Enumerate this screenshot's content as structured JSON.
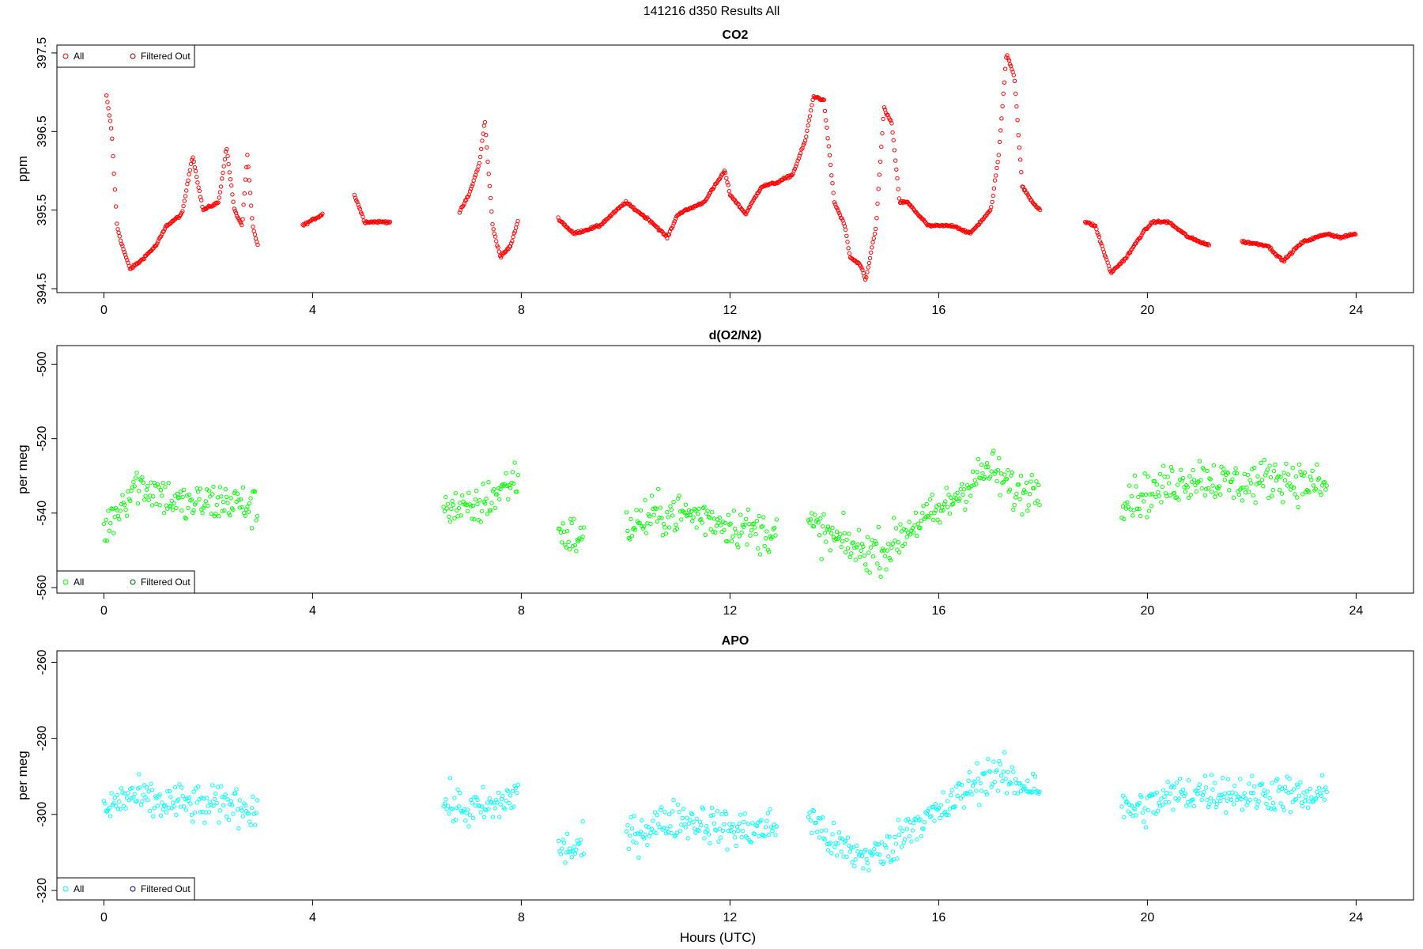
{
  "figure": {
    "title": "141216   d350   Results All",
    "xlabel": "Hours (UTC)"
  },
  "chart_data": [
    {
      "type": "scatter",
      "title": "CO2",
      "ylabel": "ppm",
      "xlim": [
        -0.9,
        25.1
      ],
      "ylim": [
        394.45,
        397.6
      ],
      "x_ticks": [
        0,
        4,
        8,
        12,
        16,
        20,
        24
      ],
      "y_ticks": [
        394.5,
        395.5,
        396.5,
        397.5
      ],
      "y_tick_labels": [
        "394.5",
        "395.5",
        "396.5",
        "397.5"
      ],
      "legend": {
        "position": "top-left",
        "entries": [
          {
            "label": "All",
            "color": "#ff0000"
          },
          {
            "label": "Filtered Out",
            "color": "#8b0000"
          }
        ]
      },
      "series": [
        {
          "name": "All",
          "color": "#ff0000",
          "style": "smooth",
          "knots": [
            [
              0.05,
              396.95
            ],
            [
              0.15,
              396.5
            ],
            [
              0.25,
              395.3
            ],
            [
              0.35,
              395.05
            ],
            [
              0.5,
              394.75
            ],
            [
              0.7,
              394.85
            ],
            [
              1.0,
              395.05
            ],
            [
              1.2,
              395.3
            ],
            [
              1.5,
              395.45
            ],
            [
              1.7,
              396.2
            ],
            [
              1.9,
              395.5
            ],
            [
              2.2,
              395.6
            ],
            [
              2.35,
              396.3
            ],
            [
              2.5,
              395.5
            ],
            [
              2.65,
              395.3
            ],
            [
              2.75,
              396.2
            ],
            [
              2.85,
              395.3
            ],
            [
              2.95,
              395.05
            ],
            [
              3.8,
              395.3
            ],
            [
              4.2,
              395.45
            ],
            [
              4.8,
              395.7
            ],
            [
              5.0,
              395.35
            ],
            [
              5.5,
              395.35
            ],
            [
              6.2,
              395.4
            ],
            [
              6.8,
              395.45
            ],
            [
              7.0,
              395.7
            ],
            [
              7.2,
              396.1
            ],
            [
              7.3,
              396.65
            ],
            [
              7.45,
              395.3
            ],
            [
              7.6,
              394.9
            ],
            [
              7.8,
              395.05
            ],
            [
              7.95,
              395.4
            ],
            [
              8.7,
              395.4
            ],
            [
              9.0,
              395.2
            ],
            [
              9.5,
              395.3
            ],
            [
              10.0,
              395.6
            ],
            [
              10.2,
              395.5
            ],
            [
              10.5,
              395.35
            ],
            [
              10.8,
              395.15
            ],
            [
              11.0,
              395.45
            ],
            [
              11.5,
              395.6
            ],
            [
              11.7,
              395.8
            ],
            [
              11.9,
              396.0
            ],
            [
              12.0,
              395.7
            ],
            [
              12.3,
              395.45
            ],
            [
              12.6,
              395.8
            ],
            [
              12.9,
              395.85
            ],
            [
              13.2,
              395.95
            ],
            [
              13.45,
              396.4
            ],
            [
              13.6,
              396.95
            ],
            [
              13.8,
              396.9
            ],
            [
              14.0,
              395.6
            ],
            [
              14.2,
              395.3
            ],
            [
              14.3,
              394.9
            ],
            [
              14.5,
              394.8
            ],
            [
              14.6,
              394.6
            ],
            [
              14.8,
              395.3
            ],
            [
              14.95,
              396.8
            ],
            [
              15.1,
              396.6
            ],
            [
              15.25,
              395.6
            ],
            [
              15.4,
              395.6
            ],
            [
              15.8,
              395.3
            ],
            [
              16.3,
              395.3
            ],
            [
              16.6,
              395.2
            ],
            [
              17.0,
              395.5
            ],
            [
              17.15,
              396.2
            ],
            [
              17.3,
              397.5
            ],
            [
              17.45,
              397.2
            ],
            [
              17.6,
              395.8
            ],
            [
              17.8,
              395.6
            ],
            [
              17.95,
              395.5
            ],
            [
              18.8,
              395.35
            ],
            [
              19.0,
              395.3
            ],
            [
              19.3,
              394.7
            ],
            [
              19.6,
              394.9
            ],
            [
              19.9,
              395.2
            ],
            [
              20.1,
              395.35
            ],
            [
              20.4,
              395.35
            ],
            [
              20.8,
              395.15
            ],
            [
              21.2,
              395.05
            ],
            [
              21.8,
              395.1
            ],
            [
              22.3,
              395.05
            ],
            [
              22.6,
              394.85
            ],
            [
              22.9,
              395.05
            ],
            [
              23.0,
              395.1
            ],
            [
              23.45,
              395.2
            ],
            [
              23.7,
              395.15
            ],
            [
              24.0,
              395.2
            ]
          ]
        }
      ]
    },
    {
      "type": "scatter",
      "title": "d(O2/N2)",
      "ylabel": "per meg",
      "xlim": [
        -0.9,
        25.1
      ],
      "ylim": [
        -561.5,
        -495
      ],
      "x_ticks": [
        0,
        4,
        8,
        12,
        16,
        20,
        24
      ],
      "y_ticks": [
        -560,
        -540,
        -520,
        -500
      ],
      "y_tick_labels": [
        "-560",
        "-540",
        "-520",
        "-500"
      ],
      "legend": {
        "position": "bottom-left",
        "entries": [
          {
            "label": "All",
            "color": "#00ff00"
          },
          {
            "label": "Filtered Out",
            "color": "#006400"
          }
        ]
      },
      "series": [
        {
          "name": "All",
          "color": "#00ff00",
          "style": "noisy",
          "spread": 5.5,
          "knots": [
            [
              0.0,
              -545
            ],
            [
              0.3,
              -538
            ],
            [
              0.6,
              -532
            ],
            [
              1.0,
              -534
            ],
            [
              1.5,
              -538
            ],
            [
              2.0,
              -537
            ],
            [
              2.5,
              -537
            ],
            [
              2.95,
              -539
            ],
            [
              3.8,
              -538
            ],
            [
              4.5,
              -534
            ],
            [
              5.5,
              -535
            ],
            [
              6.5,
              -537
            ],
            [
              7.0,
              -540
            ],
            [
              7.5,
              -535
            ],
            [
              7.95,
              -530
            ],
            [
              8.7,
              -545
            ],
            [
              9.2,
              -547
            ],
            [
              10.0,
              -544
            ],
            [
              10.5,
              -541
            ],
            [
              11.0,
              -540
            ],
            [
              11.5,
              -541
            ],
            [
              12.0,
              -543
            ],
            [
              12.5,
              -545
            ],
            [
              12.9,
              -545
            ],
            [
              13.5,
              -543
            ],
            [
              14.0,
              -547
            ],
            [
              14.5,
              -550
            ],
            [
              15.0,
              -550
            ],
            [
              15.5,
              -543
            ],
            [
              16.0,
              -540
            ],
            [
              16.5,
              -533
            ],
            [
              17.0,
              -528
            ],
            [
              17.5,
              -535
            ],
            [
              17.95,
              -532
            ],
            [
              18.8,
              -537
            ],
            [
              19.5,
              -536
            ],
            [
              20.0,
              -535
            ],
            [
              20.5,
              -532
            ],
            [
              21.0,
              -530
            ],
            [
              21.5,
              -532
            ],
            [
              22.0,
              -532
            ],
            [
              22.5,
              -530
            ],
            [
              23.0,
              -532
            ],
            [
              23.45,
              -533
            ],
            [
              24.0,
              -533
            ]
          ]
        }
      ]
    },
    {
      "type": "scatter",
      "title": "APO",
      "ylabel": "per meg",
      "xlim": [
        -0.9,
        25.1
      ],
      "ylim": [
        -322.5,
        -257
      ],
      "x_ticks": [
        0,
        4,
        8,
        12,
        16,
        20,
        24
      ],
      "y_ticks": [
        -320,
        -300,
        -280,
        -260
      ],
      "y_tick_labels": [
        "-320",
        "-300",
        "-280",
        "-260"
      ],
      "legend": {
        "position": "bottom-left",
        "entries": [
          {
            "label": "All",
            "color": "#00ffff"
          },
          {
            "label": "Filtered Out",
            "color": "#00008b"
          }
        ]
      },
      "series": [
        {
          "name": "All",
          "color": "#00ffff",
          "style": "noisy",
          "spread": 5.0,
          "knots": [
            [
              0.0,
              -299
            ],
            [
              0.5,
              -295
            ],
            [
              1.0,
              -297
            ],
            [
              1.5,
              -297
            ],
            [
              2.0,
              -298
            ],
            [
              2.5,
              -297
            ],
            [
              2.95,
              -299
            ],
            [
              3.8,
              -298
            ],
            [
              4.5,
              -296
            ],
            [
              5.5,
              -296
            ],
            [
              6.5,
              -297
            ],
            [
              7.0,
              -299
            ],
            [
              7.5,
              -298
            ],
            [
              7.95,
              -294
            ],
            [
              8.7,
              -309
            ],
            [
              9.2,
              -309
            ],
            [
              10.0,
              -306
            ],
            [
              10.5,
              -303
            ],
            [
              11.0,
              -301
            ],
            [
              11.5,
              -302
            ],
            [
              12.0,
              -304
            ],
            [
              12.5,
              -304
            ],
            [
              12.9,
              -303
            ],
            [
              13.5,
              -300
            ],
            [
              14.0,
              -308
            ],
            [
              14.5,
              -311
            ],
            [
              15.0,
              -310
            ],
            [
              15.5,
              -302
            ],
            [
              16.0,
              -300
            ],
            [
              16.5,
              -294
            ],
            [
              17.0,
              -289
            ],
            [
              17.5,
              -292
            ],
            [
              17.95,
              -292
            ],
            [
              18.8,
              -299
            ],
            [
              19.5,
              -299
            ],
            [
              20.0,
              -298
            ],
            [
              20.5,
              -295
            ],
            [
              21.0,
              -294
            ],
            [
              21.5,
              -294
            ],
            [
              22.0,
              -295
            ],
            [
              22.5,
              -294
            ],
            [
              23.0,
              -296
            ],
            [
              23.45,
              -295
            ],
            [
              24.0,
              -296
            ]
          ]
        }
      ]
    }
  ]
}
